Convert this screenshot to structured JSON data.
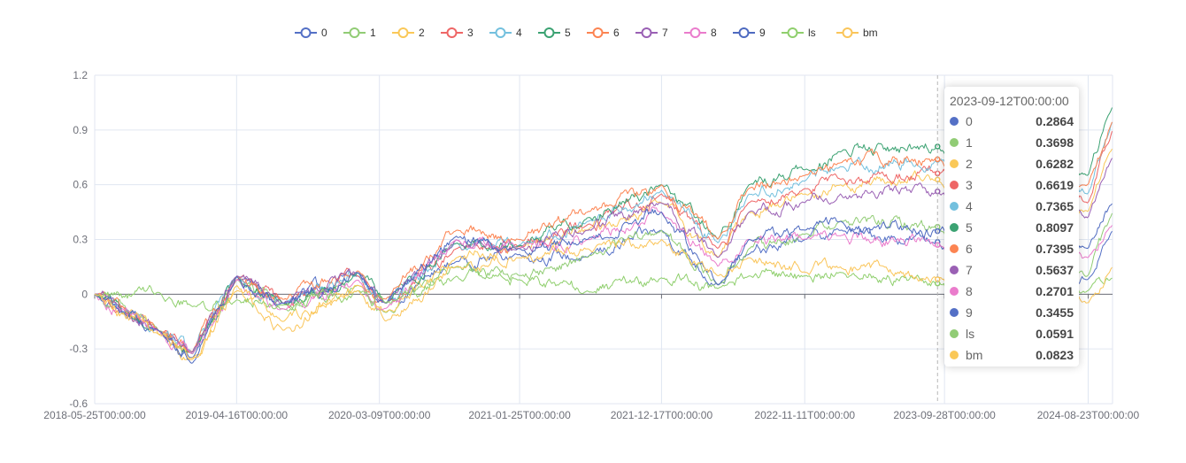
{
  "chart_data": {
    "type": "line",
    "title": "",
    "xlabel": "",
    "ylabel": "",
    "ylim": [
      -0.6,
      1.2
    ],
    "y_ticks": [
      "1.2",
      "0.9",
      "0.6",
      "0.3",
      "0",
      "-0.3",
      "-0.6"
    ],
    "y_tick_values": [
      1.2,
      0.9,
      0.6,
      0.3,
      0,
      -0.3,
      -0.6
    ],
    "x_range": [
      "2018-05-25",
      "2024-10-18"
    ],
    "x_ticks": [
      "2018-05-25T00:00:00",
      "2019-04-16T00:00:00",
      "2020-03-09T00:00:00",
      "2021-01-25T00:00:00",
      "2021-12-17T00:00:00",
      "2022-11-11T00:00:00",
      "2023-09-28T00:00:00",
      "2024-08-23T00:00:00"
    ],
    "x_tick_dates": [
      "2018-05-25",
      "2019-04-16",
      "2020-03-09",
      "2021-01-25",
      "2021-12-17",
      "2022-11-11",
      "2023-09-28",
      "2024-08-23"
    ],
    "grid": true,
    "legend_position": "top-center",
    "series": [
      {
        "name": "0",
        "color": "#5470c6",
        "points": [
          [
            "2018-05-25",
            0
          ],
          [
            "2018-10-19",
            -0.2
          ],
          [
            "2019-01-04",
            -0.35
          ],
          [
            "2019-04-16",
            0.1
          ],
          [
            "2019-08-01",
            -0.05
          ],
          [
            "2020-01-20",
            0.1
          ],
          [
            "2020-03-23",
            -0.05
          ],
          [
            "2020-09-01",
            0.18
          ],
          [
            "2021-01-25",
            0.22
          ],
          [
            "2021-06-30",
            0.2
          ],
          [
            "2021-12-17",
            0.35
          ],
          [
            "2022-04-26",
            0.05
          ],
          [
            "2022-07-05",
            0.22
          ],
          [
            "2022-11-11",
            0.3
          ],
          [
            "2023-02-01",
            0.35
          ],
          [
            "2023-09-12",
            0.2864
          ],
          [
            "2024-01-20",
            0.15
          ],
          [
            "2024-08-23",
            0.08
          ],
          [
            "2024-10-18",
            0.35
          ]
        ]
      },
      {
        "name": "1",
        "color": "#91cc75",
        "points": [
          [
            "2018-05-25",
            0
          ],
          [
            "2018-10-19",
            -0.2
          ],
          [
            "2019-01-04",
            -0.33
          ],
          [
            "2019-04-16",
            0.08
          ],
          [
            "2019-08-01",
            -0.08
          ],
          [
            "2020-01-20",
            0.05
          ],
          [
            "2020-03-23",
            -0.1
          ],
          [
            "2020-09-01",
            0.15
          ],
          [
            "2021-01-25",
            0.1
          ],
          [
            "2021-06-30",
            0.2
          ],
          [
            "2021-12-17",
            0.35
          ],
          [
            "2022-04-26",
            0.05
          ],
          [
            "2022-07-05",
            0.25
          ],
          [
            "2022-11-11",
            0.33
          ],
          [
            "2023-02-01",
            0.4
          ],
          [
            "2023-09-12",
            0.3698
          ],
          [
            "2024-01-20",
            0.18
          ],
          [
            "2024-08-23",
            0.1
          ],
          [
            "2024-10-18",
            0.45
          ]
        ]
      },
      {
        "name": "2",
        "color": "#fac858",
        "points": [
          [
            "2018-05-25",
            0
          ],
          [
            "2018-10-19",
            -0.22
          ],
          [
            "2019-01-04",
            -0.35
          ],
          [
            "2019-04-16",
            0.05
          ],
          [
            "2019-08-01",
            -0.15
          ],
          [
            "2020-01-20",
            0.05
          ],
          [
            "2020-03-23",
            -0.1
          ],
          [
            "2020-09-01",
            0.2
          ],
          [
            "2021-01-25",
            0.25
          ],
          [
            "2021-06-30",
            0.35
          ],
          [
            "2021-12-17",
            0.5
          ],
          [
            "2022-04-26",
            0.2
          ],
          [
            "2022-07-05",
            0.45
          ],
          [
            "2022-11-11",
            0.55
          ],
          [
            "2023-02-01",
            0.6
          ],
          [
            "2023-09-12",
            0.6282
          ],
          [
            "2024-01-20",
            0.55
          ],
          [
            "2024-08-23",
            0.45
          ],
          [
            "2024-10-18",
            0.8
          ]
        ]
      },
      {
        "name": "3",
        "color": "#ee6666",
        "points": [
          [
            "2018-05-25",
            0
          ],
          [
            "2018-10-19",
            -0.2
          ],
          [
            "2019-01-04",
            -0.32
          ],
          [
            "2019-04-16",
            0.08
          ],
          [
            "2019-08-01",
            -0.05
          ],
          [
            "2020-01-20",
            0.1
          ],
          [
            "2020-03-23",
            -0.05
          ],
          [
            "2020-09-01",
            0.25
          ],
          [
            "2021-01-25",
            0.26
          ],
          [
            "2021-06-30",
            0.38
          ],
          [
            "2021-12-17",
            0.55
          ],
          [
            "2022-04-26",
            0.25
          ],
          [
            "2022-07-05",
            0.5
          ],
          [
            "2022-11-11",
            0.58
          ],
          [
            "2023-02-01",
            0.63
          ],
          [
            "2023-09-12",
            0.6619
          ],
          [
            "2024-01-20",
            0.6
          ],
          [
            "2024-08-23",
            0.5
          ],
          [
            "2024-10-18",
            0.9
          ]
        ]
      },
      {
        "name": "4",
        "color": "#73c0de",
        "points": [
          [
            "2018-05-25",
            0
          ],
          [
            "2018-10-19",
            -0.2
          ],
          [
            "2019-01-04",
            -0.32
          ],
          [
            "2019-04-16",
            0.1
          ],
          [
            "2019-08-01",
            -0.05
          ],
          [
            "2020-01-20",
            0.12
          ],
          [
            "2020-03-23",
            -0.05
          ],
          [
            "2020-09-01",
            0.28
          ],
          [
            "2021-01-25",
            0.27
          ],
          [
            "2021-06-30",
            0.4
          ],
          [
            "2021-12-17",
            0.57
          ],
          [
            "2022-04-26",
            0.28
          ],
          [
            "2022-07-05",
            0.55
          ],
          [
            "2022-11-11",
            0.62
          ],
          [
            "2023-02-01",
            0.7
          ],
          [
            "2023-09-12",
            0.7365
          ],
          [
            "2024-01-20",
            0.65
          ],
          [
            "2024-08-23",
            0.55
          ],
          [
            "2024-10-18",
            0.95
          ]
        ]
      },
      {
        "name": "5",
        "color": "#3ba272",
        "points": [
          [
            "2018-05-25",
            0
          ],
          [
            "2018-10-19",
            -0.2
          ],
          [
            "2019-01-04",
            -0.33
          ],
          [
            "2019-04-16",
            0.1
          ],
          [
            "2019-08-01",
            -0.05
          ],
          [
            "2020-01-20",
            0.12
          ],
          [
            "2020-03-23",
            -0.05
          ],
          [
            "2020-09-01",
            0.28
          ],
          [
            "2021-01-25",
            0.27
          ],
          [
            "2021-06-30",
            0.42
          ],
          [
            "2021-12-17",
            0.6
          ],
          [
            "2022-04-26",
            0.3
          ],
          [
            "2022-07-05",
            0.6
          ],
          [
            "2022-11-11",
            0.68
          ],
          [
            "2023-02-01",
            0.78
          ],
          [
            "2023-09-12",
            0.8097
          ],
          [
            "2024-01-20",
            0.72
          ],
          [
            "2024-08-23",
            0.65
          ],
          [
            "2024-10-18",
            1.03
          ]
        ]
      },
      {
        "name": "6",
        "color": "#fc8452",
        "points": [
          [
            "2018-05-25",
            0
          ],
          [
            "2018-10-19",
            -0.2
          ],
          [
            "2019-01-04",
            -0.32
          ],
          [
            "2019-04-16",
            0.1
          ],
          [
            "2019-08-01",
            -0.03
          ],
          [
            "2020-01-20",
            0.13
          ],
          [
            "2020-03-23",
            -0.03
          ],
          [
            "2020-09-01",
            0.35
          ],
          [
            "2021-01-25",
            0.3
          ],
          [
            "2021-06-30",
            0.45
          ],
          [
            "2021-12-17",
            0.6
          ],
          [
            "2022-04-26",
            0.3
          ],
          [
            "2022-07-05",
            0.58
          ],
          [
            "2022-11-11",
            0.65
          ],
          [
            "2023-02-01",
            0.72
          ],
          [
            "2023-09-12",
            0.7395
          ],
          [
            "2024-01-20",
            0.68
          ],
          [
            "2024-08-23",
            0.6
          ],
          [
            "2024-10-18",
            0.95
          ]
        ]
      },
      {
        "name": "7",
        "color": "#9a60b4",
        "points": [
          [
            "2018-05-25",
            0
          ],
          [
            "2018-10-19",
            -0.2
          ],
          [
            "2019-01-04",
            -0.32
          ],
          [
            "2019-04-16",
            0.1
          ],
          [
            "2019-08-01",
            -0.05
          ],
          [
            "2020-01-20",
            0.12
          ],
          [
            "2020-03-23",
            -0.05
          ],
          [
            "2020-09-01",
            0.3
          ],
          [
            "2021-01-25",
            0.25
          ],
          [
            "2021-06-30",
            0.35
          ],
          [
            "2021-12-17",
            0.5
          ],
          [
            "2022-04-26",
            0.2
          ],
          [
            "2022-07-05",
            0.45
          ],
          [
            "2022-11-11",
            0.5
          ],
          [
            "2023-02-01",
            0.55
          ],
          [
            "2023-09-12",
            0.5637
          ],
          [
            "2024-01-20",
            0.5
          ],
          [
            "2024-08-23",
            0.42
          ],
          [
            "2024-10-18",
            0.75
          ]
        ]
      },
      {
        "name": "8",
        "color": "#ea7ccc",
        "points": [
          [
            "2018-05-25",
            0
          ],
          [
            "2018-10-19",
            -0.2
          ],
          [
            "2019-01-04",
            -0.33
          ],
          [
            "2019-04-16",
            0.08
          ],
          [
            "2019-08-01",
            -0.08
          ],
          [
            "2020-01-20",
            0.08
          ],
          [
            "2020-03-23",
            -0.08
          ],
          [
            "2020-09-01",
            0.3
          ],
          [
            "2021-01-25",
            0.25
          ],
          [
            "2021-06-30",
            0.3
          ],
          [
            "2021-12-17",
            0.45
          ],
          [
            "2022-04-26",
            0.15
          ],
          [
            "2022-07-05",
            0.3
          ],
          [
            "2022-11-11",
            0.3
          ],
          [
            "2023-02-01",
            0.32
          ],
          [
            "2023-09-12",
            0.2701
          ],
          [
            "2024-01-20",
            0.25
          ],
          [
            "2024-08-23",
            0.2
          ],
          [
            "2024-10-18",
            0.38
          ]
        ]
      },
      {
        "name": "9",
        "color": "#4e6ac0",
        "points": [
          [
            "2018-05-25",
            0
          ],
          [
            "2018-10-19",
            -0.2
          ],
          [
            "2019-01-04",
            -0.38
          ],
          [
            "2019-04-16",
            0.1
          ],
          [
            "2019-08-01",
            -0.05
          ],
          [
            "2020-01-20",
            0.12
          ],
          [
            "2020-03-23",
            -0.05
          ],
          [
            "2020-09-01",
            0.32
          ],
          [
            "2021-01-25",
            0.25
          ],
          [
            "2021-06-30",
            0.3
          ],
          [
            "2021-12-17",
            0.45
          ],
          [
            "2022-04-26",
            0.05
          ],
          [
            "2022-07-05",
            0.3
          ],
          [
            "2022-11-11",
            0.35
          ],
          [
            "2023-02-01",
            0.4
          ],
          [
            "2023-09-12",
            0.3455
          ],
          [
            "2024-01-20",
            0.3
          ],
          [
            "2024-08-23",
            0.25
          ],
          [
            "2024-10-18",
            0.5
          ]
        ]
      },
      {
        "name": "ls",
        "color": "#8fcf6d",
        "points": [
          [
            "2018-05-25",
            0
          ],
          [
            "2018-10-19",
            0.01
          ],
          [
            "2019-01-04",
            -0.07
          ],
          [
            "2019-04-16",
            -0.03
          ],
          [
            "2019-08-01",
            -0.06
          ],
          [
            "2020-01-20",
            0.02
          ],
          [
            "2020-03-23",
            -0.05
          ],
          [
            "2020-09-01",
            0.1
          ],
          [
            "2021-01-25",
            0.08
          ],
          [
            "2021-06-30",
            0.02
          ],
          [
            "2021-12-17",
            0.09
          ],
          [
            "2022-04-26",
            0.03
          ],
          [
            "2022-07-05",
            0.1
          ],
          [
            "2022-11-11",
            0.1
          ],
          [
            "2023-02-01",
            0.12
          ],
          [
            "2023-09-12",
            0.0591
          ],
          [
            "2024-01-20",
            0.0
          ],
          [
            "2024-08-23",
            0.02
          ],
          [
            "2024-10-18",
            0.09
          ]
        ]
      },
      {
        "name": "bm",
        "color": "#fac55a",
        "points": [
          [
            "2018-05-25",
            0
          ],
          [
            "2018-10-19",
            -0.22
          ],
          [
            "2019-01-04",
            -0.36
          ],
          [
            "2019-04-16",
            0.02
          ],
          [
            "2019-08-01",
            -0.2
          ],
          [
            "2020-01-20",
            0.02
          ],
          [
            "2020-03-23",
            -0.15
          ],
          [
            "2020-09-01",
            0.15
          ],
          [
            "2021-01-25",
            0.2
          ],
          [
            "2021-06-30",
            0.25
          ],
          [
            "2021-12-17",
            0.3
          ],
          [
            "2022-04-26",
            0.1
          ],
          [
            "2022-07-05",
            0.2
          ],
          [
            "2022-11-11",
            0.12
          ],
          [
            "2023-02-01",
            0.15
          ],
          [
            "2023-09-12",
            0.0823
          ],
          [
            "2024-01-20",
            0.2
          ],
          [
            "2024-08-23",
            -0.05
          ],
          [
            "2024-10-18",
            0.15
          ]
        ]
      }
    ],
    "tooltip": {
      "title": "2023-09-12T00:00:00",
      "date": "2023-09-12",
      "rows": [
        {
          "name": "0",
          "value": "0.2864",
          "color": "#5470c6"
        },
        {
          "name": "1",
          "value": "0.3698",
          "color": "#91cc75"
        },
        {
          "name": "2",
          "value": "0.6282",
          "color": "#fac858"
        },
        {
          "name": "3",
          "value": "0.6619",
          "color": "#ee6666"
        },
        {
          "name": "4",
          "value": "0.7365",
          "color": "#73c0de"
        },
        {
          "name": "5",
          "value": "0.8097",
          "color": "#3ba272"
        },
        {
          "name": "6",
          "value": "0.7395",
          "color": "#fc8452"
        },
        {
          "name": "7",
          "value": "0.5637",
          "color": "#9a60b4"
        },
        {
          "name": "8",
          "value": "0.2701",
          "color": "#ea7ccc"
        },
        {
          "name": "9",
          "value": "0.3455",
          "color": "#5470c6"
        },
        {
          "name": "ls",
          "value": "0.0591",
          "color": "#91cc75"
        },
        {
          "name": "bm",
          "value": "0.0823",
          "color": "#fac858"
        }
      ]
    }
  }
}
